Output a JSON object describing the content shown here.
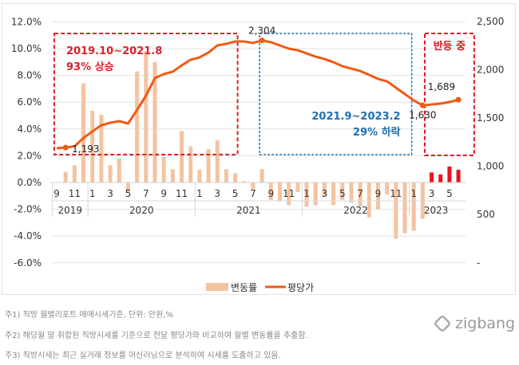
{
  "chart_data": {
    "type": "bar+line",
    "months": [
      "2019.9",
      "2019.10",
      "2019.11",
      "2019.12",
      "2020.1",
      "2020.2",
      "2020.3",
      "2020.4",
      "2020.5",
      "2020.6",
      "2020.7",
      "2020.8",
      "2020.9",
      "2020.10",
      "2020.11",
      "2020.12",
      "2021.1",
      "2021.2",
      "2021.3",
      "2021.4",
      "2021.5",
      "2021.6",
      "2021.7",
      "2021.8",
      "2021.9",
      "2021.10",
      "2021.11",
      "2021.12",
      "2022.1",
      "2022.2",
      "2022.3",
      "2022.4",
      "2022.5",
      "2022.6",
      "2022.7",
      "2022.8",
      "2022.9",
      "2022.10",
      "2022.11",
      "2022.12",
      "2023.1",
      "2023.2",
      "2023.3",
      "2023.4",
      "2023.5",
      "2023.6"
    ],
    "x_tick_labels": [
      {
        "i": 0,
        "t": "9"
      },
      {
        "i": 2,
        "t": "11"
      },
      {
        "i": 4,
        "t": "1"
      },
      {
        "i": 6,
        "t": "3"
      },
      {
        "i": 8,
        "t": "5"
      },
      {
        "i": 10,
        "t": "7"
      },
      {
        "i": 12,
        "t": "9"
      },
      {
        "i": 14,
        "t": "11"
      },
      {
        "i": 16,
        "t": "1"
      },
      {
        "i": 18,
        "t": "3"
      },
      {
        "i": 20,
        "t": "5"
      },
      {
        "i": 22,
        "t": "7"
      },
      {
        "i": 24,
        "t": "9"
      },
      {
        "i": 26,
        "t": "11"
      },
      {
        "i": 28,
        "t": "1"
      },
      {
        "i": 30,
        "t": "3"
      },
      {
        "i": 32,
        "t": "5"
      },
      {
        "i": 34,
        "t": "7"
      },
      {
        "i": 36,
        "t": "9"
      },
      {
        "i": 38,
        "t": "11"
      },
      {
        "i": 40,
        "t": "1"
      },
      {
        "i": 42,
        "t": "3"
      },
      {
        "i": 44,
        "t": "5"
      }
    ],
    "years": [
      {
        "label": "2019",
        "from": 0,
        "to": 3
      },
      {
        "label": "2020",
        "from": 4,
        "to": 15
      },
      {
        "label": "2021",
        "from": 16,
        "to": 27
      },
      {
        "label": "2022",
        "from": 28,
        "to": 39
      },
      {
        "label": "2023",
        "from": 40,
        "to": 45
      }
    ],
    "series": [
      {
        "name": "변동률",
        "type": "bar",
        "axis": "left",
        "color": "#f4c3a1",
        "highlight_color": "#e8141e",
        "highlight_from": 42,
        "values": [
          0,
          0.8,
          1.3,
          7.4,
          5.35,
          5.05,
          1.3,
          1.8,
          -0.7,
          8.3,
          9.8,
          9.0,
          1.9,
          1.0,
          3.85,
          2.7,
          0.95,
          2.5,
          3.15,
          1.0,
          0.7,
          0.1,
          -0.5,
          1.0,
          -1.3,
          -1.4,
          -1.7,
          -0.7,
          -1.8,
          -1.7,
          -1.0,
          -1.7,
          -1.3,
          -1.5,
          -1.8,
          -2.6,
          -2.0,
          -0.9,
          -4.2,
          -3.8,
          -3.6,
          -2.7,
          0.75,
          0.6,
          1.2,
          0.95
        ]
      },
      {
        "name": "평당가",
        "type": "line",
        "axis": "right",
        "color": "#f05a14",
        "values": [
          1186,
          1193,
          1205,
          1293,
          1360,
          1425,
          1450,
          1467,
          1442,
          1583,
          1731,
          1913,
          1955,
          1980,
          2045,
          2103,
          2128,
          2178,
          2252,
          2269,
          2293,
          2293,
          2277,
          2304,
          2285,
          2252,
          2219,
          2202,
          2169,
          2136,
          2111,
          2078,
          2037,
          2012,
          1987,
          1946,
          1905,
          1880,
          1814,
          1748,
          1682,
          1630,
          1640,
          1649,
          1665,
          1689
        ]
      }
    ],
    "point_labels": [
      {
        "i": 1,
        "t": "1,193"
      },
      {
        "i": 23,
        "t": "2,304"
      },
      {
        "i": 41,
        "t": "1,630"
      },
      {
        "i": 45,
        "t": "1,689"
      }
    ],
    "left_axis": {
      "ylim": [
        -6,
        12
      ],
      "ticks": [
        "12.0%",
        "10.0%",
        "8.0%",
        "6.0%",
        "4.0%",
        "2.0%",
        "0.0%",
        "-2.0%",
        "-4.0%",
        "-6.0%"
      ]
    },
    "right_axis": {
      "ylim": [
        0,
        2500
      ],
      "ticks": [
        "2,500",
        "2,000",
        "1,500",
        "1,000",
        "500",
        "-"
      ]
    },
    "annotations": [
      {
        "lines": [
          "2019.10~2021.8",
          "93% 상승"
        ],
        "color": "#d6242c",
        "from": 0,
        "to": 20
      },
      {
        "lines": [
          "2021.9~2023.2",
          "29% 하락"
        ],
        "color": "#1f6fb2",
        "from": 23,
        "to": 39.5
      },
      {
        "lines": [
          "반등 중"
        ],
        "color": "#e8141e",
        "from": 41.5,
        "to": 46.5
      }
    ],
    "legend": [
      "변동률",
      "평당가"
    ],
    "grid": true
  },
  "footnotes": [
    "주1) 직방 월별리포트 매매시세기준,  단위: 만원,%",
    "주2) 해당월 말 취합된 직방시세를 기준으로 전달 평당가와 비교하여 월별 변동률을 추출함.",
    "주3) 직방시세는 최근 실거래 정보를 머신러닝으로 분석하여 시세를 도출하고 있음."
  ],
  "logo": "zigbang"
}
